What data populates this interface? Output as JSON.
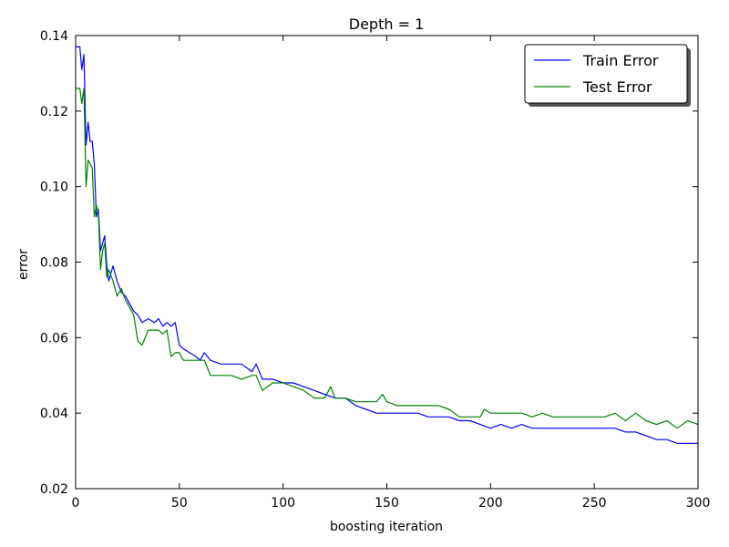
{
  "chart_data": {
    "type": "line",
    "title": "Depth = 1",
    "xlabel": "boosting iteration",
    "ylabel": "error",
    "xlim": [
      0,
      300
    ],
    "ylim": [
      0.02,
      0.14
    ],
    "xticks": [
      "0",
      "50",
      "100",
      "150",
      "200",
      "250",
      "300"
    ],
    "yticks": [
      "0.02",
      "0.04",
      "0.06",
      "0.08",
      "0.10",
      "0.12",
      "0.14"
    ],
    "grid": false,
    "legend_position": "top-right",
    "series": [
      {
        "name": "Train Error",
        "color": "#0000ff",
        "x": [
          0,
          2,
          3,
          4,
          5,
          6,
          7,
          8,
          9,
          10,
          11,
          12,
          13,
          14,
          15,
          16,
          18,
          20,
          22,
          24,
          26,
          28,
          30,
          32,
          35,
          38,
          40,
          42,
          44,
          46,
          48,
          50,
          52,
          55,
          58,
          60,
          62,
          65,
          70,
          75,
          80,
          85,
          87,
          90,
          95,
          100,
          105,
          110,
          115,
          120,
          125,
          130,
          135,
          140,
          145,
          150,
          155,
          160,
          165,
          170,
          175,
          180,
          185,
          190,
          195,
          200,
          205,
          210,
          215,
          220,
          225,
          230,
          235,
          240,
          245,
          250,
          255,
          260,
          265,
          270,
          275,
          280,
          285,
          290,
          295,
          300
        ],
        "values": [
          0.137,
          0.137,
          0.131,
          0.135,
          0.111,
          0.117,
          0.112,
          0.112,
          0.106,
          0.092,
          0.094,
          0.083,
          0.085,
          0.087,
          0.079,
          0.075,
          0.079,
          0.075,
          0.072,
          0.071,
          0.069,
          0.067,
          0.066,
          0.064,
          0.065,
          0.064,
          0.065,
          0.063,
          0.064,
          0.063,
          0.064,
          0.058,
          0.057,
          0.056,
          0.055,
          0.054,
          0.056,
          0.054,
          0.053,
          0.053,
          0.053,
          0.051,
          0.053,
          0.049,
          0.049,
          0.048,
          0.048,
          0.047,
          0.046,
          0.045,
          0.044,
          0.044,
          0.042,
          0.041,
          0.04,
          0.04,
          0.04,
          0.04,
          0.04,
          0.039,
          0.039,
          0.039,
          0.038,
          0.038,
          0.037,
          0.036,
          0.037,
          0.036,
          0.037,
          0.036,
          0.036,
          0.036,
          0.036,
          0.036,
          0.036,
          0.036,
          0.036,
          0.036,
          0.035,
          0.035,
          0.034,
          0.033,
          0.033,
          0.032,
          0.032,
          0.032
        ]
      },
      {
        "name": "Test Error",
        "color": "#008000",
        "x": [
          0,
          2,
          3,
          4,
          5,
          6,
          7,
          8,
          9,
          10,
          11,
          12,
          13,
          14,
          15,
          16,
          18,
          20,
          22,
          24,
          26,
          28,
          30,
          32,
          35,
          38,
          40,
          42,
          44,
          46,
          48,
          50,
          52,
          55,
          58,
          60,
          62,
          65,
          70,
          75,
          80,
          85,
          87,
          90,
          95,
          100,
          105,
          110,
          115,
          120,
          123,
          125,
          130,
          135,
          140,
          145,
          148,
          150,
          155,
          160,
          165,
          170,
          175,
          180,
          185,
          190,
          195,
          197,
          200,
          205,
          210,
          215,
          220,
          225,
          230,
          235,
          240,
          245,
          250,
          255,
          260,
          265,
          270,
          275,
          280,
          285,
          290,
          295,
          300
        ],
        "values": [
          0.126,
          0.126,
          0.122,
          0.126,
          0.1,
          0.107,
          0.106,
          0.105,
          0.092,
          0.095,
          0.093,
          0.078,
          0.083,
          0.085,
          0.076,
          0.078,
          0.075,
          0.071,
          0.073,
          0.07,
          0.068,
          0.066,
          0.059,
          0.058,
          0.062,
          0.062,
          0.062,
          0.061,
          0.062,
          0.055,
          0.056,
          0.056,
          0.054,
          0.054,
          0.054,
          0.054,
          0.054,
          0.05,
          0.05,
          0.05,
          0.049,
          0.05,
          0.05,
          0.046,
          0.048,
          0.048,
          0.047,
          0.046,
          0.044,
          0.044,
          0.047,
          0.044,
          0.044,
          0.043,
          0.043,
          0.043,
          0.045,
          0.043,
          0.042,
          0.042,
          0.042,
          0.042,
          0.042,
          0.041,
          0.039,
          0.039,
          0.039,
          0.041,
          0.04,
          0.04,
          0.04,
          0.04,
          0.039,
          0.04,
          0.039,
          0.039,
          0.039,
          0.039,
          0.039,
          0.039,
          0.04,
          0.038,
          0.04,
          0.038,
          0.037,
          0.038,
          0.036,
          0.038,
          0.037
        ]
      }
    ]
  }
}
